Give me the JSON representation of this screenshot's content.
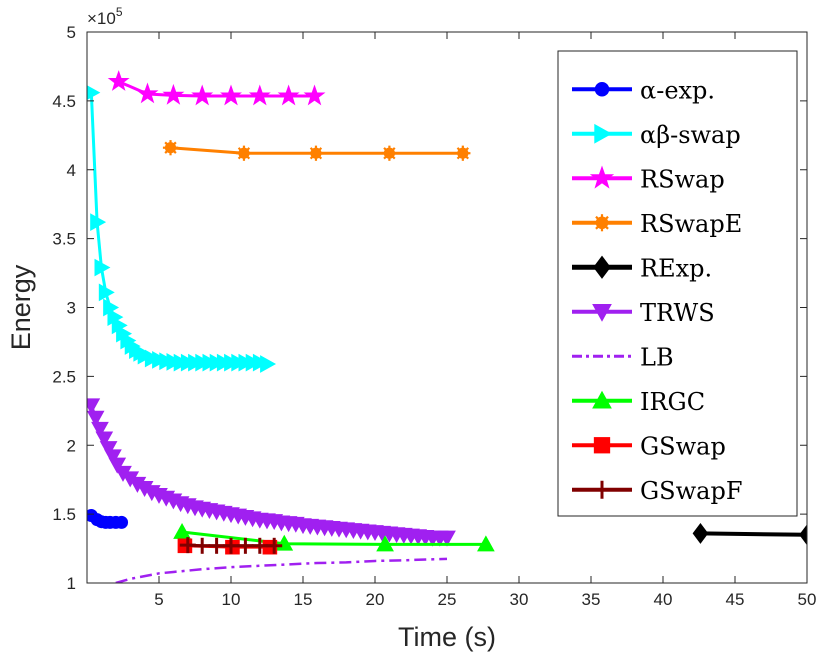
{
  "chart_data": {
    "type": "line",
    "title": "",
    "xlabel": "Time (s)",
    "ylabel": "Energy",
    "xlim": [
      0,
      50
    ],
    "ylim": [
      1,
      5
    ],
    "y_scale_note": {
      "base": "×10",
      "exponent": "5"
    },
    "xticks": [
      5,
      10,
      15,
      20,
      25,
      30,
      35,
      40,
      45,
      50
    ],
    "yticks": [
      1,
      1.5,
      2,
      2.5,
      3,
      3.5,
      4,
      4.5,
      5
    ],
    "ytick_labels": [
      "1",
      "1.5",
      "2",
      "2.5",
      "3",
      "3.5",
      "4",
      "4.5",
      "5"
    ],
    "grid": false,
    "legend_position": "top-right",
    "series": [
      {
        "name": "α-exp.",
        "display": "α-exp.",
        "color": "#0000ff",
        "marker": "circle",
        "line": "solid",
        "x": [
          0.3,
          0.7,
          1.0,
          1.3,
          1.6,
          2.0,
          2.4
        ],
        "y": [
          1.49,
          1.46,
          1.445,
          1.44,
          1.44,
          1.44,
          1.44
        ]
      },
      {
        "name": "αβ-swap",
        "display": "αβ-swap",
        "color": "#00ffff",
        "marker": "triangle-right",
        "line": "solid",
        "x": [
          0.3,
          0.7,
          1.0,
          1.3,
          1.6,
          1.9,
          2.2,
          2.5,
          2.8,
          3.1,
          3.4,
          3.7,
          4.0,
          4.5,
          5.0,
          5.5,
          6.0,
          6.5,
          7.0,
          7.5,
          8.0,
          8.5,
          9.0,
          9.5,
          10.0,
          10.5,
          11.0,
          11.5,
          12.0,
          12.5
        ],
        "y": [
          4.56,
          3.62,
          3.29,
          3.11,
          3.0,
          2.93,
          2.87,
          2.81,
          2.76,
          2.72,
          2.69,
          2.67,
          2.65,
          2.63,
          2.62,
          2.61,
          2.605,
          2.6,
          2.6,
          2.6,
          2.6,
          2.6,
          2.6,
          2.6,
          2.6,
          2.6,
          2.6,
          2.6,
          2.6,
          2.59
        ]
      },
      {
        "name": "RSwap",
        "display": "RSwap",
        "color": "#ff00ff",
        "marker": "star",
        "line": "solid",
        "x": [
          2.2,
          4.2,
          6.0,
          8.0,
          10.0,
          12.0,
          14.0,
          15.8
        ],
        "y": [
          4.64,
          4.55,
          4.54,
          4.535,
          4.535,
          4.535,
          4.535,
          4.535
        ]
      },
      {
        "name": "RSwapE",
        "display": "RSwapE",
        "color": "#ff8000",
        "marker": "asterisk",
        "line": "solid",
        "x": [
          5.8,
          10.9,
          15.9,
          21.0,
          26.1
        ],
        "y": [
          4.16,
          4.12,
          4.12,
          4.12,
          4.12
        ]
      },
      {
        "name": "RExp.",
        "display": "RExp.",
        "color": "#000000",
        "marker": "diamond",
        "line": "solid",
        "x": [
          42.6,
          50.0
        ],
        "y": [
          1.36,
          1.35
        ]
      },
      {
        "name": "TRWS",
        "display": "TRWS",
        "color": "#a020f0",
        "marker": "triangle-down",
        "line": "solid",
        "x": [
          0.3,
          0.6,
          0.9,
          1.2,
          1.5,
          1.8,
          2.1,
          2.5,
          3.0,
          3.5,
          4.0,
          4.5,
          5.0,
          5.5,
          6.0,
          6.5,
          7.0,
          7.5,
          8.0,
          8.5,
          9.0,
          9.5,
          10.0,
          10.5,
          11.0,
          11.5,
          12.0,
          12.5,
          13.0,
          13.5,
          14.0,
          14.5,
          15.0,
          15.5,
          16.0,
          16.5,
          17.0,
          17.5,
          18.0,
          18.5,
          19.0,
          19.5,
          20.0,
          20.5,
          21.0,
          21.5,
          22.0,
          22.5,
          23.0,
          23.5,
          24.0,
          24.5,
          25.0
        ],
        "y": [
          2.29,
          2.2,
          2.12,
          2.05,
          1.98,
          1.92,
          1.86,
          1.8,
          1.76,
          1.72,
          1.69,
          1.66,
          1.64,
          1.62,
          1.6,
          1.58,
          1.565,
          1.55,
          1.54,
          1.53,
          1.52,
          1.51,
          1.5,
          1.49,
          1.48,
          1.47,
          1.46,
          1.455,
          1.45,
          1.44,
          1.435,
          1.43,
          1.42,
          1.415,
          1.41,
          1.405,
          1.4,
          1.395,
          1.39,
          1.385,
          1.38,
          1.375,
          1.37,
          1.365,
          1.36,
          1.355,
          1.35,
          1.345,
          1.34,
          1.335,
          1.33,
          1.33,
          1.33
        ]
      },
      {
        "name": "LB",
        "display": "LB",
        "color": "#a020f0",
        "marker": "none",
        "line": "dashdot",
        "x": [
          2.0,
          3.0,
          4.0,
          5.0,
          6.0,
          7.0,
          8.0,
          10.0,
          12.0,
          14.0,
          16.0,
          18.0,
          20.0,
          22.0,
          25.0
        ],
        "y": [
          1.0,
          1.03,
          1.05,
          1.07,
          1.08,
          1.09,
          1.1,
          1.115,
          1.125,
          1.135,
          1.145,
          1.15,
          1.16,
          1.165,
          1.175
        ]
      },
      {
        "name": "IRGC",
        "display": "IRGC",
        "color": "#00ff00",
        "marker": "triangle-up",
        "line": "solid",
        "x": [
          6.6,
          13.7,
          20.7,
          27.7
        ],
        "y": [
          1.37,
          1.285,
          1.28,
          1.28
        ]
      },
      {
        "name": "GSwap",
        "display": "GSwap",
        "color": "#ff0000",
        "marker": "square",
        "line": "solid",
        "x": [
          6.8,
          10.1,
          12.7
        ],
        "y": [
          1.27,
          1.26,
          1.26
        ]
      },
      {
        "name": "GSwapF",
        "display": "GSwapF",
        "color": "#800000",
        "marker": "plus",
        "line": "solid",
        "x": [
          7.0,
          8.0,
          9.0,
          10.0,
          11.0,
          12.0,
          13.0
        ],
        "y": [
          1.275,
          1.27,
          1.27,
          1.27,
          1.27,
          1.27,
          1.27
        ]
      }
    ]
  }
}
